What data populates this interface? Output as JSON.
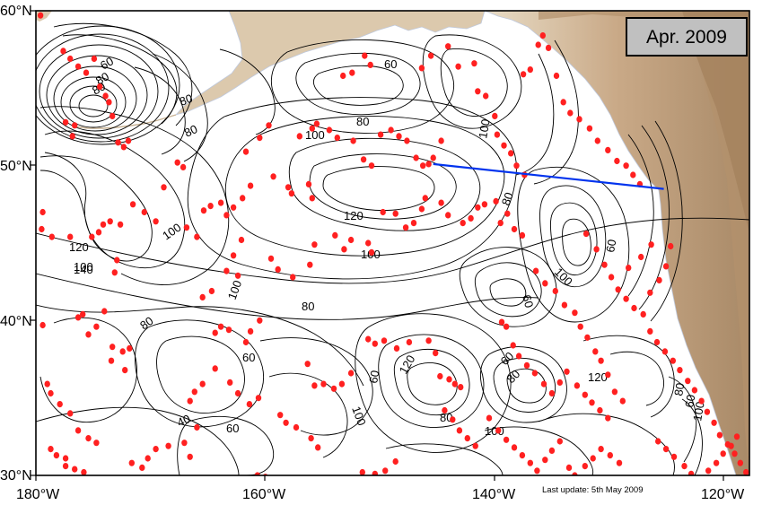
{
  "title_box": {
    "label": "Apr. 2009",
    "fill": "#c0c0c0"
  },
  "footer": {
    "update": "Last update: 5th May 2009"
  },
  "axes": {
    "lat_labels": [
      "60°N",
      "50°N",
      "40°N",
      "30°N"
    ],
    "lon_labels": [
      "180°W",
      "160°W",
      "140°W",
      "120°W"
    ]
  },
  "contour_labels": [
    "60",
    "100",
    "80",
    "100",
    "80",
    "100",
    "120",
    "100",
    "80",
    "60",
    "60",
    "80",
    "100",
    "120",
    "100",
    "100",
    "80",
    "60",
    "120",
    "140",
    "100",
    "80",
    "60",
    "40",
    "60",
    "80",
    "100",
    "120",
    "80",
    "100",
    "60",
    "80",
    "60",
    "80",
    "80",
    "60"
  ],
  "colors": {
    "land": "#d8c2a4",
    "land_high": "#b89a78",
    "ocean": "#ffffff",
    "contour": "#000000",
    "float_marker": "#ff2020",
    "section_line": "#0033ee"
  },
  "section_line": {
    "start": {
      "lon": -145.2,
      "lat": 50.1
    },
    "end": {
      "lon": -125.0,
      "lat": 48.5
    }
  },
  "floats": [
    [
      -179.6,
      59.7
    ],
    [
      -177.6,
      57.4
    ],
    [
      -177.0,
      56.9
    ],
    [
      -176.3,
      56.4
    ],
    [
      -175.6,
      56.0
    ],
    [
      -174.9,
      56.9
    ],
    [
      -174.4,
      55.1
    ],
    [
      -173.9,
      54.5
    ],
    [
      -173.6,
      54.1
    ],
    [
      -173.3,
      53.2
    ],
    [
      -177.4,
      52.8
    ],
    [
      -176.6,
      52.6
    ],
    [
      -172.8,
      51.5
    ],
    [
      -172.3,
      51.2
    ],
    [
      -171.9,
      51.6
    ],
    [
      -176.8,
      51.9
    ],
    [
      -179.4,
      47.0
    ],
    [
      -179.5,
      45.9
    ],
    [
      -178.6,
      45.4
    ],
    [
      -177.0,
      45.4
    ],
    [
      -175.1,
      45.4
    ],
    [
      -174.5,
      45.7
    ],
    [
      -174.1,
      46.2
    ],
    [
      -173.5,
      46.4
    ],
    [
      -172.6,
      46.2
    ],
    [
      -172.9,
      43.9
    ],
    [
      -173.1,
      43.1
    ],
    [
      -171.5,
      47.5
    ],
    [
      -170.5,
      47.0
    ],
    [
      -169.5,
      46.4
    ],
    [
      -168.8,
      48.6
    ],
    [
      -167.6,
      50.2
    ],
    [
      -167.1,
      49.9
    ],
    [
      -166.8,
      46.0
    ],
    [
      -165.9,
      45.4
    ],
    [
      -165.3,
      47.1
    ],
    [
      -164.7,
      47.4
    ],
    [
      -163.8,
      47.6
    ],
    [
      -163.3,
      46.8
    ],
    [
      -162.7,
      47.3
    ],
    [
      -161.9,
      47.9
    ],
    [
      -161.2,
      48.7
    ],
    [
      -161.6,
      50.9
    ],
    [
      -160.4,
      51.8
    ],
    [
      -159.6,
      52.6
    ],
    [
      -159.2,
      49.3
    ],
    [
      -157.9,
      48.6
    ],
    [
      -157.6,
      48.2
    ],
    [
      -156.1,
      48.8
    ],
    [
      -155.8,
      47.9
    ],
    [
      -176.3,
      40.2
    ],
    [
      -175.9,
      40.4
    ],
    [
      -175.4,
      39.1
    ],
    [
      -174.7,
      39.6
    ],
    [
      -174.0,
      40.6
    ],
    [
      -173.3,
      38.3
    ],
    [
      -172.4,
      38.0
    ],
    [
      -171.8,
      38.2
    ],
    [
      -173.4,
      37.4
    ],
    [
      -172.2,
      36.8
    ],
    [
      -179.4,
      39.7
    ],
    [
      -179.0,
      35.9
    ],
    [
      -178.7,
      35.3
    ],
    [
      -177.9,
      34.6
    ],
    [
      -177.0,
      34.0
    ],
    [
      -176.3,
      32.9
    ],
    [
      -175.4,
      32.4
    ],
    [
      -174.7,
      32.1
    ],
    [
      -178.7,
      31.7
    ],
    [
      -178.2,
      31.3
    ],
    [
      -177.4,
      31.1
    ],
    [
      -177.4,
      30.6
    ],
    [
      -176.6,
      30.4
    ],
    [
      -175.8,
      30.2
    ],
    [
      -171.6,
      30.8
    ],
    [
      -170.7,
      30.5
    ],
    [
      -170.2,
      31.1
    ],
    [
      -169.5,
      31.7
    ],
    [
      -168.4,
      31.9
    ],
    [
      -167.0,
      32.1
    ],
    [
      -166.5,
      31.2
    ],
    [
      -165.9,
      33.1
    ],
    [
      -166.5,
      34.8
    ],
    [
      -166.1,
      35.4
    ],
    [
      -165.4,
      35.9
    ],
    [
      -164.3,
      39.2
    ],
    [
      -163.8,
      39.6
    ],
    [
      -163.1,
      39.4
    ],
    [
      -161.6,
      38.6
    ],
    [
      -161.2,
      39.3
    ],
    [
      -160.4,
      40.0
    ],
    [
      -165.4,
      41.5
    ],
    [
      -164.6,
      41.9
    ],
    [
      -163.3,
      43.2
    ],
    [
      -162.3,
      42.9
    ],
    [
      -162.7,
      44.2
    ],
    [
      -162.0,
      45.2
    ],
    [
      -159.4,
      44.0
    ],
    [
      -158.8,
      43.3
    ],
    [
      -157.5,
      42.8
    ],
    [
      -156.0,
      43.6
    ],
    [
      -155.6,
      44.9
    ],
    [
      -164.3,
      36.9
    ],
    [
      -163.0,
      36.0
    ],
    [
      -162.3,
      35.3
    ],
    [
      -161.3,
      34.6
    ],
    [
      -160.5,
      35.0
    ],
    [
      -158.6,
      33.9
    ],
    [
      -158.1,
      33.4
    ],
    [
      -157.2,
      33.1
    ],
    [
      -155.9,
      32.4
    ],
    [
      -155.3,
      31.8
    ],
    [
      -160.6,
      30.0
    ],
    [
      -159.9,
      29.9
    ],
    [
      -154.8,
      29.6
    ],
    [
      -151.4,
      30.2
    ],
    [
      -150.3,
      30.1
    ],
    [
      -149.4,
      30.3
    ],
    [
      -148.5,
      30.9
    ],
    [
      -156.2,
      37.2
    ],
    [
      -155.6,
      35.8
    ],
    [
      -154.8,
      35.9
    ],
    [
      -153.9,
      35.6
    ],
    [
      -153.2,
      35.9
    ],
    [
      -152.4,
      36.6
    ],
    [
      -150.9,
      38.8
    ],
    [
      -150.3,
      38.5
    ],
    [
      -149.5,
      38.7
    ],
    [
      -148.4,
      38.2
    ],
    [
      -147.3,
      38.6
    ],
    [
      -145.6,
      38.7
    ],
    [
      -145.0,
      37.9
    ],
    [
      -144.6,
      36.4
    ],
    [
      -143.8,
      36.2
    ],
    [
      -143.3,
      35.9
    ],
    [
      -142.8,
      35.7
    ],
    [
      -153.8,
      45.5
    ],
    [
      -153.0,
      44.6
    ],
    [
      -152.4,
      45.2
    ],
    [
      -150.9,
      45.0
    ],
    [
      -150.6,
      44.4
    ],
    [
      -149.6,
      47.0
    ],
    [
      -148.5,
      46.9
    ],
    [
      -147.6,
      46.0
    ],
    [
      -146.9,
      46.3
    ],
    [
      -146.2,
      47.2
    ],
    [
      -145.9,
      47.9
    ],
    [
      -144.5,
      47.6
    ],
    [
      -143.9,
      46.8
    ],
    [
      -142.6,
      46.3
    ],
    [
      -141.9,
      46.6
    ],
    [
      -141.3,
      47.3
    ],
    [
      -140.7,
      47.5
    ],
    [
      -156.9,
      51.9
    ],
    [
      -155.8,
      52.4
    ],
    [
      -155.4,
      52.7
    ],
    [
      -154.3,
      52.3
    ],
    [
      -153.6,
      51.8
    ],
    [
      -152.2,
      51.6
    ],
    [
      -151.3,
      50.4
    ],
    [
      -150.6,
      50.0
    ],
    [
      -149.8,
      52.0
    ],
    [
      -148.9,
      52.3
    ],
    [
      -148.2,
      51.9
    ],
    [
      -147.5,
      51.6
    ],
    [
      -146.7,
      50.5
    ],
    [
      -146.1,
      50.0
    ],
    [
      -145.6,
      50.1
    ],
    [
      -145.2,
      50.5
    ],
    [
      -144.5,
      51.6
    ],
    [
      -153.1,
      55.8
    ],
    [
      -152.3,
      56.0
    ],
    [
      -151.2,
      57.1
    ],
    [
      -150.7,
      56.5
    ],
    [
      -146.2,
      56.3
    ],
    [
      -145.4,
      57.1
    ],
    [
      -143.9,
      57.7
    ],
    [
      -143.0,
      56.4
    ],
    [
      -141.6,
      56.6
    ],
    [
      -141.3,
      54.8
    ],
    [
      -140.6,
      54.5
    ],
    [
      -139.8,
      53.2
    ],
    [
      -139.6,
      52.0
    ],
    [
      -139.0,
      51.3
    ],
    [
      -138.4,
      50.8
    ],
    [
      -137.9,
      50.0
    ],
    [
      -137.2,
      49.4
    ],
    [
      -137.3,
      55.9
    ],
    [
      -136.7,
      56.2
    ],
    [
      -136.0,
      57.8
    ],
    [
      -135.6,
      58.4
    ],
    [
      -135.1,
      57.6
    ],
    [
      -134.4,
      55.8
    ],
    [
      -133.8,
      54.1
    ],
    [
      -133.2,
      53.4
    ],
    [
      -132.4,
      53.0
    ],
    [
      -131.5,
      52.4
    ],
    [
      -130.8,
      51.6
    ],
    [
      -129.9,
      51.0
    ],
    [
      -129.1,
      50.3
    ],
    [
      -128.3,
      50.0
    ],
    [
      -127.7,
      49.4
    ],
    [
      -127.1,
      48.8
    ],
    [
      -139.7,
      47.7
    ],
    [
      -139.3,
      46.3
    ],
    [
      -138.7,
      46.9
    ],
    [
      -138.1,
      45.9
    ],
    [
      -137.4,
      45.5
    ],
    [
      -136.2,
      43.2
    ],
    [
      -135.4,
      42.4
    ],
    [
      -134.5,
      41.9
    ],
    [
      -133.7,
      41.0
    ],
    [
      -132.8,
      40.5
    ],
    [
      -132.3,
      39.6
    ],
    [
      -131.7,
      38.9
    ],
    [
      -131.0,
      38.0
    ],
    [
      -130.5,
      37.4
    ],
    [
      -129.9,
      36.5
    ],
    [
      -129.3,
      35.4
    ],
    [
      -128.6,
      34.8
    ],
    [
      -131.8,
      45.6
    ],
    [
      -130.9,
      44.6
    ],
    [
      -130.2,
      43.6
    ],
    [
      -129.6,
      42.8
    ],
    [
      -129.0,
      42.0
    ],
    [
      -128.3,
      41.4
    ],
    [
      -127.6,
      40.8
    ],
    [
      -126.8,
      40.4
    ],
    [
      -126.2,
      41.8
    ],
    [
      -125.4,
      42.6
    ],
    [
      -124.8,
      43.5
    ],
    [
      -124.4,
      44.8
    ],
    [
      -126.1,
      44.9
    ],
    [
      -127.0,
      44.1
    ],
    [
      -128.1,
      43.4
    ],
    [
      -139.2,
      39.9
    ],
    [
      -138.8,
      39.6
    ],
    [
      -138.2,
      38.4
    ],
    [
      -137.7,
      37.7
    ],
    [
      -137.0,
      37.1
    ],
    [
      -136.3,
      36.6
    ],
    [
      -135.5,
      35.9
    ],
    [
      -134.8,
      35.3
    ],
    [
      -134.1,
      36.0
    ],
    [
      -133.5,
      36.7
    ],
    [
      -132.6,
      35.8
    ],
    [
      -131.9,
      35.2
    ],
    [
      -131.3,
      34.7
    ],
    [
      -130.6,
      34.2
    ],
    [
      -129.9,
      33.7
    ],
    [
      -126.2,
      39.3
    ],
    [
      -125.6,
      38.6
    ],
    [
      -124.9,
      38.0
    ],
    [
      -124.2,
      37.4
    ],
    [
      -123.6,
      36.8
    ],
    [
      -122.9,
      36.1
    ],
    [
      -122.3,
      35.5
    ],
    [
      -121.7,
      34.8
    ],
    [
      -121.2,
      34.1
    ],
    [
      -120.6,
      33.4
    ],
    [
      -120.1,
      32.6
    ],
    [
      -119.4,
      32.0
    ],
    [
      -118.8,
      31.4
    ],
    [
      -118.3,
      30.8
    ],
    [
      -117.8,
      30.2
    ],
    [
      -117.3,
      31.2
    ],
    [
      -140.3,
      33.7
    ],
    [
      -139.5,
      32.9
    ],
    [
      -138.8,
      32.3
    ],
    [
      -138.1,
      31.8
    ],
    [
      -137.4,
      31.3
    ],
    [
      -136.7,
      30.8
    ],
    [
      -136.1,
      30.3
    ],
    [
      -135.4,
      31.0
    ],
    [
      -134.8,
      31.6
    ],
    [
      -134.1,
      32.2
    ],
    [
      -133.3,
      30.5
    ],
    [
      -132.8,
      30.0
    ],
    [
      -131.9,
      30.6
    ],
    [
      -131.2,
      31.1
    ],
    [
      -130.5,
      31.7
    ],
    [
      -129.7,
      31.3
    ],
    [
      -128.9,
      30.8
    ],
    [
      -144.2,
      34.2
    ],
    [
      -143.5,
      33.6
    ],
    [
      -142.9,
      32.9
    ],
    [
      -142.2,
      32.4
    ],
    [
      -141.5,
      31.9
    ],
    [
      -125.5,
      32.2
    ],
    [
      -124.8,
      31.7
    ],
    [
      -124.1,
      31.2
    ],
    [
      -123.2,
      30.6
    ],
    [
      -122.6,
      30.1
    ],
    [
      -121.8,
      29.8
    ],
    [
      -121.1,
      30.3
    ],
    [
      -120.4,
      30.8
    ],
    [
      -119.8,
      31.4
    ],
    [
      -119.1,
      31.9
    ],
    [
      -118.6,
      32.5
    ]
  ]
}
